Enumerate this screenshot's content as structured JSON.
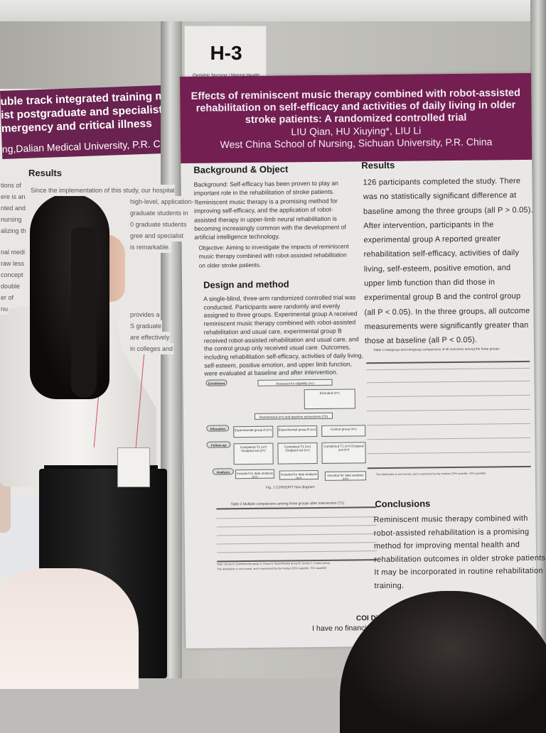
{
  "left_poster": {
    "title_lines": [
      "uble track integrated training mode of",
      "ist postgraduate and specialist nurse",
      "mergency and critical illness"
    ],
    "affiliation": "ng,Dalian Medical University, P.R. China",
    "results_heading": "Results",
    "results_lines": [
      "Since the implementation of this study, our hospital",
      "high-level, application-",
      "graduate students in",
      "0 graduate students",
      "gree and specialist",
      "is remarkable."
    ],
    "left_col_fragments": [
      "tions of",
      "ere is an",
      "nted and",
      "nursing",
      "alizing th",
      "nal medi",
      "raw less",
      "concept",
      "double",
      "er of",
      "nu"
    ],
    "lower_fragments": [
      "provides a",
      "S graduate",
      "are effectively",
      "in colleges and"
    ]
  },
  "board_card": {
    "code": "H-3",
    "category": "Geriatric Nursing / Mental Health"
  },
  "poster": {
    "title_lines": [
      "Effects of reminiscent music therapy combined with robot-assisted",
      "rehabilitation on self-efficacy and activities of daily living in older",
      "stroke patients: A randomized controlled trial"
    ],
    "authors": "LIU Qian, HU Xiuying*, LIU Li",
    "affiliation": "West China School of Nursing, Sichuan University, P.R. China",
    "background": {
      "heading": "Background & Object",
      "background_lines": [
        "Background: Self-efficacy has been proven to play an",
        "important role in the rehabilitation of stroke patients.",
        "Reminiscent music therapy is a promising method for",
        "improving self-efficacy, and the application of robot-",
        "assisted therapy in upper-limb neural rehabilitation is",
        "becoming increasingly common with the development of",
        "artificial intelligence technology."
      ],
      "objective_lines": [
        "Objective: Aiming to investigate the impacts of reminiscent",
        "music therapy combined with robot-assisted rehabilitation",
        "on older stroke patients."
      ]
    },
    "design": {
      "heading": "Design and method",
      "lines": [
        "A single-blind, three-arm randomized controlled trial was",
        "conducted. Participants were randomly and evenly",
        "assigned to three groups. Experimental group A received",
        "reminiscent music therapy combined with robot-assisted",
        "rehabilitation and usual care, experimental group B",
        "received robot-assisted rehabilitation and usual care, and",
        "the control group only received usual care. Outcomes,",
        "including rehabilitation self-efficacy, activities of daily living,",
        "self-esteem, positive emotion, and upper limb function,",
        "were evaluated at baseline and after intervention."
      ]
    },
    "flowchart": {
      "stages": [
        "Enrollment",
        "Allocation",
        "Follow-up",
        "Analysis"
      ],
      "assessed": "Assessed for eligibility (n=)",
      "excluded": "Excluded (n=)",
      "randomized": "Randomized (n=) and baseline assessment (T0)",
      "groups": [
        "Experimental group A (n=)",
        "Experimental group B (n=)",
        "Control group (n=)"
      ],
      "followup": [
        "Completed T1 (n=) Dropped out (n=)",
        "Completed T1 (n=) Dropped out (n=)",
        "Completed T1 (n=) Dropped out (n=)"
      ],
      "analysis": [
        "Included for data analysis (n=)",
        "Included for data analysis (n=)",
        "Included for data analysis (n=)"
      ],
      "caption": "Fig. 1 CONSORT flow diagram"
    },
    "table2_caption": "Table 2 Multiple comparisons among three groups after intervention (T1)",
    "table2_note": "Note: Group A, Experimental group A; Group B, Experimental group B; Group C, Control group",
    "table2_footnote": "The distribution is not normal, and is expressed by the median (25% quantile, 75% quantile)",
    "results": {
      "heading": "Results",
      "lines": [
        "126 participants completed the study. There",
        "was no statistically significant difference at",
        "baseline among the three groups (all P > 0.05).",
        "After intervention, participants in the",
        "experimental group A reported greater",
        "rehabilitation self-efficacy, activities of daily",
        "living, self-esteem, positive emotion, and",
        "upper limb function than did those in",
        "experimental group B and the control group",
        "(all P < 0.05). In the three groups, all outcome",
        "measurements were significantly greater than",
        "those at baseline (all P < 0.05)."
      ],
      "table1_caption": "Table 1 Intergroup and intragroup comparisons of all outcomes among the three groups",
      "table1_note": "The distribution is not normal, and is expressed by the median (25% quantile, 75% quantile)"
    },
    "conclusions": {
      "heading": "Conclusions",
      "lines": [
        "Reminiscent music therapy combined with",
        "robot-assisted rehabilitation is a promising",
        "method for improving mental health and",
        "rehabilitation outcomes in older stroke patients.",
        "It may be incorporated in routine rehabilitation",
        "training."
      ]
    },
    "coi": {
      "heading": "COI Di",
      "text": "I have no financial"
    },
    "colors": {
      "header": "#731f52",
      "body": "#e9e8e6"
    }
  }
}
